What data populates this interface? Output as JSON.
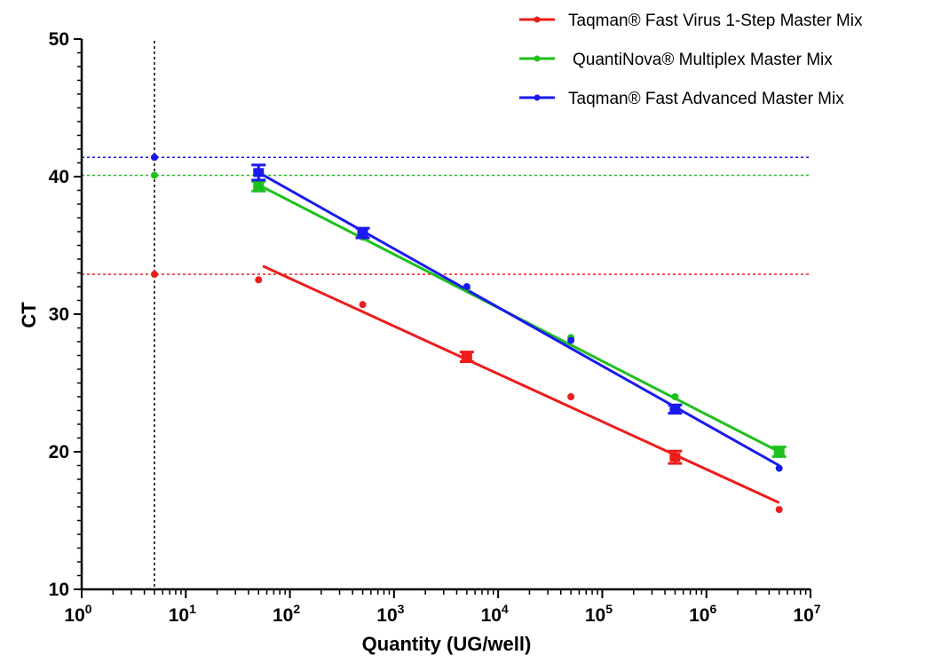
{
  "chart_data": {
    "type": "scatter",
    "title": "",
    "xlabel": "Quantity (UG/well)",
    "ylabel": "CT",
    "x_scale": "log10",
    "xlim": [
      1,
      10000000
    ],
    "ylim": [
      10,
      50
    ],
    "x_tick_labels": [
      {
        "value": 1,
        "base": "10",
        "exp": "0"
      },
      {
        "value": 10,
        "base": "10",
        "exp": "1"
      },
      {
        "value": 100,
        "base": "10",
        "exp": "2"
      },
      {
        "value": 1000,
        "base": "10",
        "exp": "3"
      },
      {
        "value": 10000,
        "base": "10",
        "exp": "4"
      },
      {
        "value": 100000,
        "base": "10",
        "exp": "5"
      },
      {
        "value": 1000000,
        "base": "10",
        "exp": "6"
      },
      {
        "value": 10000000,
        "base": "10",
        "exp": "7"
      }
    ],
    "y_ticks": [
      10,
      20,
      30,
      40,
      50
    ],
    "legend_position": "top-right",
    "series": [
      {
        "name": "Taqman® Fast Virus 1-Step Master Mix",
        "color": "#ee1c1c",
        "points": [
          {
            "x": 50,
            "y": 32.5
          },
          {
            "x": 500,
            "y": 30.7
          },
          {
            "x": 5000,
            "y": 26.9,
            "err": 0.35
          },
          {
            "x": 50000,
            "y": 24.0
          },
          {
            "x": 500000,
            "y": 19.6,
            "err": 0.45
          },
          {
            "x": 5000000,
            "y": 15.8
          }
        ],
        "fit": {
          "x": [
            55,
            5000000
          ],
          "y": [
            33.5,
            16.3
          ]
        },
        "lod": {
          "x": 5,
          "y": 32.9
        }
      },
      {
        "name": "QuantiNova® Multiplex Master Mix",
        "color": "#1ec01e",
        "points": [
          {
            "x": 50,
            "y": 39.3,
            "err": 0.35
          },
          {
            "x": 500,
            "y": 35.6
          },
          {
            "x": 5000,
            "y": 31.9
          },
          {
            "x": 50000,
            "y": 28.3
          },
          {
            "x": 500000,
            "y": 24.0
          },
          {
            "x": 5000000,
            "y": 20.0,
            "err": 0.35
          }
        ],
        "fit": {
          "x": [
            50,
            5000000
          ],
          "y": [
            39.4,
            20.0
          ]
        },
        "lod": {
          "x": 5,
          "y": 40.1
        }
      },
      {
        "name": "Taqman® Fast Advanced Master Mix",
        "color": "#1a1aee",
        "points": [
          {
            "x": 50,
            "y": 40.3,
            "err": 0.55
          },
          {
            "x": 500,
            "y": 35.9,
            "err": 0.35
          },
          {
            "x": 5000,
            "y": 32.0
          },
          {
            "x": 50000,
            "y": 28.1
          },
          {
            "x": 500000,
            "y": 23.1,
            "err": 0.3
          },
          {
            "x": 5000000,
            "y": 18.8
          }
        ],
        "fit": {
          "x": [
            50,
            5000000
          ],
          "y": [
            40.3,
            19.0
          ]
        },
        "lod": {
          "x": 5,
          "y": 41.4
        }
      }
    ],
    "reference_line_x": 5
  }
}
